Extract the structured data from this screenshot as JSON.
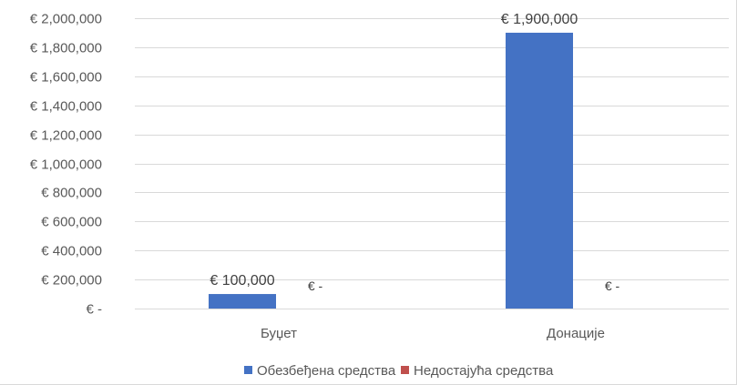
{
  "chart_data": {
    "type": "bar",
    "categories": [
      "Буџет",
      "Донације"
    ],
    "series": [
      {
        "name": "Обезбеђена средства",
        "values": [
          100000,
          1900000
        ],
        "labels": [
          "€ 100,000",
          "€ 1,900,000"
        ],
        "color": "#4472c4"
      },
      {
        "name": "Недостајућа средства",
        "values": [
          0,
          0
        ],
        "labels": [
          "€ -",
          "€ -"
        ],
        "color": "#c0504d"
      }
    ],
    "ylim": [
      0,
      2000000
    ],
    "y_ticks": [
      0,
      200000,
      400000,
      600000,
      800000,
      1000000,
      1200000,
      1400000,
      1600000,
      1800000,
      2000000
    ],
    "y_tick_labels": [
      "€ -",
      "€ 200,000",
      "€ 400,000",
      "€ 600,000",
      "€ 800,000",
      "€ 1,000,000",
      "€ 1,200,000",
      "€ 1,400,000",
      "€ 1,600,000",
      "€ 1,800,000",
      "€ 2,000,000"
    ],
    "grid": true,
    "gridline_color": "#d9d9d9",
    "legend_position": "bottom"
  }
}
